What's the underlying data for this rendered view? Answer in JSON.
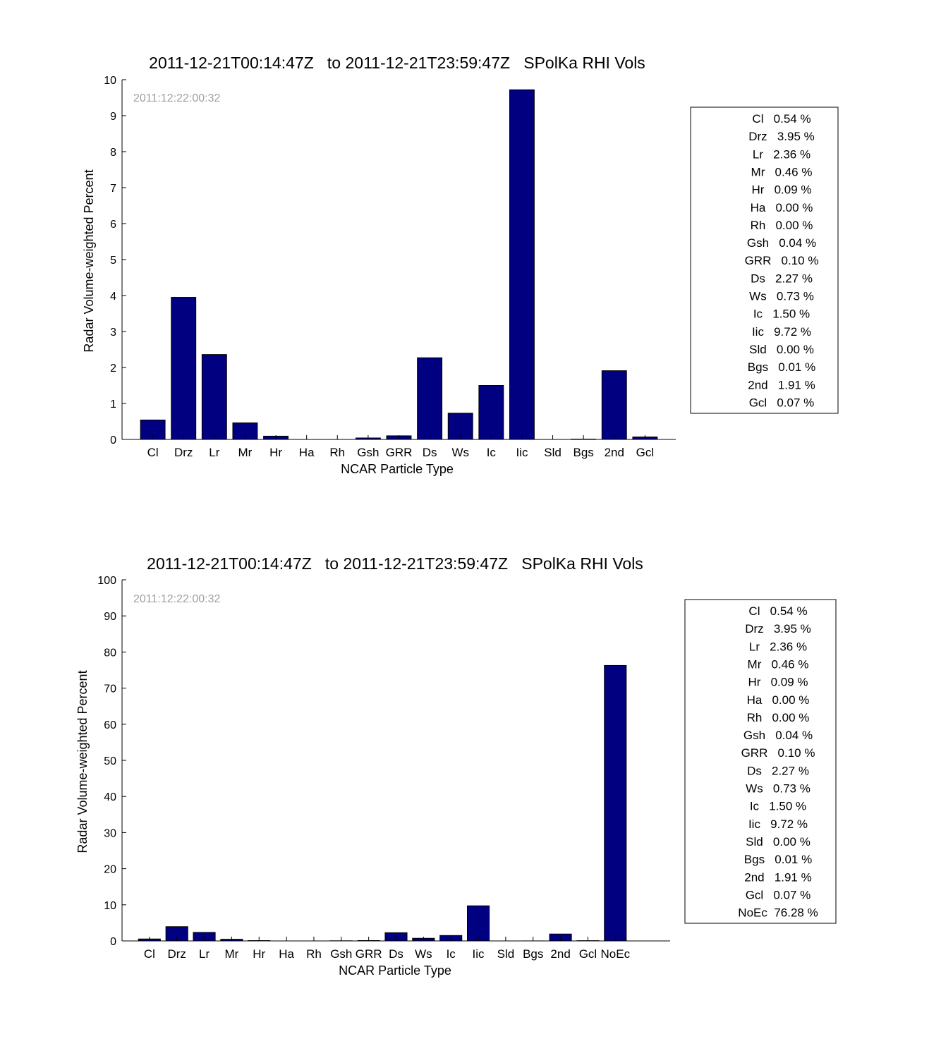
{
  "colors": {
    "bar": "#000080",
    "axis": "#000000",
    "stamp": "#a0a0a0"
  },
  "chart_data": [
    {
      "type": "bar",
      "title": "2011-12-21T00:14:47Z   to 2011-12-21T23:59:47Z   SPolKa RHI Vols",
      "annotation": "2011:12:22:00:32",
      "xlabel": "NCAR Particle Type",
      "ylabel": "Radar Volume-weighted Percent",
      "ylim": [
        0,
        10
      ],
      "yticks": [
        0,
        1,
        2,
        3,
        4,
        5,
        6,
        7,
        8,
        9,
        10
      ],
      "grid": false,
      "legend_position": "right",
      "categories": [
        "Cl",
        "Drz",
        "Lr",
        "Mr",
        "Hr",
        "Ha",
        "Rh",
        "Gsh",
        "GRR",
        "Ds",
        "Ws",
        "Ic",
        "Iic",
        "Sld",
        "Bgs",
        "2nd",
        "Gcl"
      ],
      "values": [
        0.54,
        3.95,
        2.36,
        0.46,
        0.09,
        0.0,
        0.0,
        0.04,
        0.1,
        2.27,
        0.73,
        1.5,
        9.72,
        0.0,
        0.01,
        1.91,
        0.07
      ],
      "legend": [
        "Cl   0.54 %",
        "Drz   3.95 %",
        "Lr   2.36 %",
        "Mr   0.46 %",
        "Hr   0.09 %",
        "Ha   0.00 %",
        "Rh   0.00 %",
        "Gsh   0.04 %",
        "GRR   0.10 %",
        "Ds   2.27 %",
        "Ws   0.73 %",
        "Ic   1.50 %",
        "Iic   9.72 %",
        "Sld   0.00 %",
        "Bgs   0.01 %",
        "2nd   1.91 %",
        "Gcl   0.07 %"
      ]
    },
    {
      "type": "bar",
      "title": "2011-12-21T00:14:47Z   to 2011-12-21T23:59:47Z   SPolKa RHI Vols",
      "annotation": "2011:12:22:00:32",
      "xlabel": "NCAR Particle Type",
      "ylabel": "Radar Volume-weighted Percent",
      "ylim": [
        0,
        100
      ],
      "yticks": [
        0,
        10,
        20,
        30,
        40,
        50,
        60,
        70,
        80,
        90,
        100
      ],
      "grid": false,
      "legend_position": "right",
      "categories": [
        "Cl",
        "Drz",
        "Lr",
        "Mr",
        "Hr",
        "Ha",
        "Rh",
        "Gsh",
        "GRR",
        "Ds",
        "Ws",
        "Ic",
        "Iic",
        "Sld",
        "Bgs",
        "2nd",
        "Gcl",
        "NoEc"
      ],
      "values": [
        0.54,
        3.95,
        2.36,
        0.46,
        0.09,
        0.0,
        0.0,
        0.04,
        0.1,
        2.27,
        0.73,
        1.5,
        9.72,
        0.0,
        0.01,
        1.91,
        0.07,
        76.28
      ],
      "legend": [
        "Cl   0.54 %",
        "Drz   3.95 %",
        "Lr   2.36 %",
        "Mr   0.46 %",
        "Hr   0.09 %",
        "Ha   0.00 %",
        "Rh   0.00 %",
        "Gsh   0.04 %",
        "GRR   0.10 %",
        "Ds   2.27 %",
        "Ws   0.73 %",
        "Ic   1.50 %",
        "Iic   9.72 %",
        "Sld   0.00 %",
        "Bgs   0.01 %",
        "2nd   1.91 %",
        "Gcl   0.07 %",
        "NoEc  76.28 %"
      ]
    }
  ]
}
